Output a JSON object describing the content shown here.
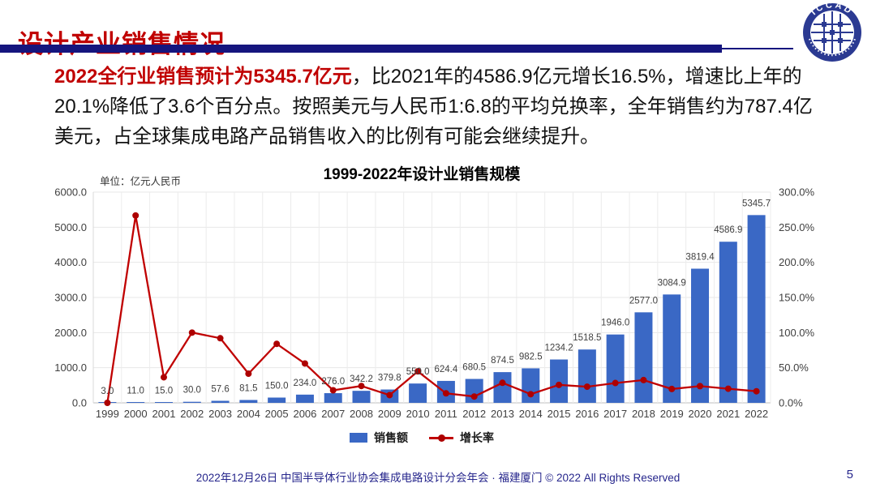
{
  "header": {
    "title": "设计产业销售情况",
    "logo_text": "ICCAD"
  },
  "paragraph": {
    "highlight": "2022全行业销售预计为5345.7亿元",
    "rest": "，比2021年的4586.9亿元增长16.5%，增速比上年的20.1%降低了3.6个百分点。按照美元与人民币1:6.8的平均兑换率，全年销售约为787.4亿美元，占全球集成电路产品销售收入的比例有可能会继续提升。"
  },
  "chart_data": {
    "type": "bar+line",
    "title": "1999-2022年设计业销售规模",
    "unit_label": "单位：亿元人民币",
    "categories": [
      "1999",
      "2000",
      "2001",
      "2002",
      "2003",
      "2004",
      "2005",
      "2006",
      "2007",
      "2008",
      "2009",
      "2010",
      "2011",
      "2012",
      "2013",
      "2014",
      "2015",
      "2016",
      "2017",
      "2018",
      "2019",
      "2020",
      "2021",
      "2022"
    ],
    "series": [
      {
        "name": "销售额",
        "type": "bar",
        "axis": "left",
        "values": [
          3.0,
          11.0,
          15.0,
          30.0,
          57.6,
          81.5,
          150.0,
          234.0,
          276.0,
          342.2,
          379.8,
          550.0,
          624.4,
          680.5,
          874.5,
          982.5,
          1234.2,
          1518.5,
          1946.0,
          2577.0,
          3084.9,
          3819.4,
          4586.9,
          5345.7
        ],
        "labels": [
          "3.0",
          "11.0",
          "15.0",
          "30.0",
          "57.6",
          "81.5",
          "150.0",
          "234.0",
          "276.0",
          "342.2",
          "379.8",
          "550.0",
          "624.4",
          "680.5",
          "874.5",
          "982.5",
          "1234.2",
          "1518.5",
          "1946.0",
          "2577.0",
          "3084.9",
          "3819.4",
          "4586.9",
          "5345.7"
        ]
      },
      {
        "name": "增长率",
        "type": "line",
        "axis": "right",
        "values": [
          0.0,
          266.7,
          36.4,
          100.0,
          92.0,
          41.5,
          84.0,
          56.0,
          17.9,
          24.0,
          11.0,
          44.8,
          13.5,
          9.0,
          28.5,
          12.3,
          25.6,
          23.0,
          28.2,
          32.4,
          19.7,
          23.8,
          20.1,
          16.5
        ]
      }
    ],
    "left_axis": {
      "min": 0,
      "max": 6000,
      "step": 1000,
      "ticks": [
        "0.0",
        "1000.0",
        "2000.0",
        "3000.0",
        "4000.0",
        "5000.0",
        "6000.0"
      ]
    },
    "right_axis": {
      "min": 0,
      "max": 300,
      "step": 50,
      "ticks": [
        "0.0%",
        "50.0%",
        "100.0%",
        "150.0%",
        "200.0%",
        "250.0%",
        "300.0%"
      ]
    },
    "legend": [
      "销售额",
      "增长率"
    ],
    "legend_position": "bottom",
    "grid": true
  },
  "footer": {
    "text": "2022年12月26日 中国半导体行业协会集成电路设计分会年会 · 福建厦门 © 2022 All Rights Reserved",
    "page_number": "5"
  },
  "colors": {
    "accent_red": "#C00000",
    "navy_rule": "#15157E",
    "bar_blue": "#3A68C5",
    "line_red": "#C00000",
    "point_red": "#AD0000",
    "footer_navy": "#26268C",
    "axis_text": "#404040"
  }
}
